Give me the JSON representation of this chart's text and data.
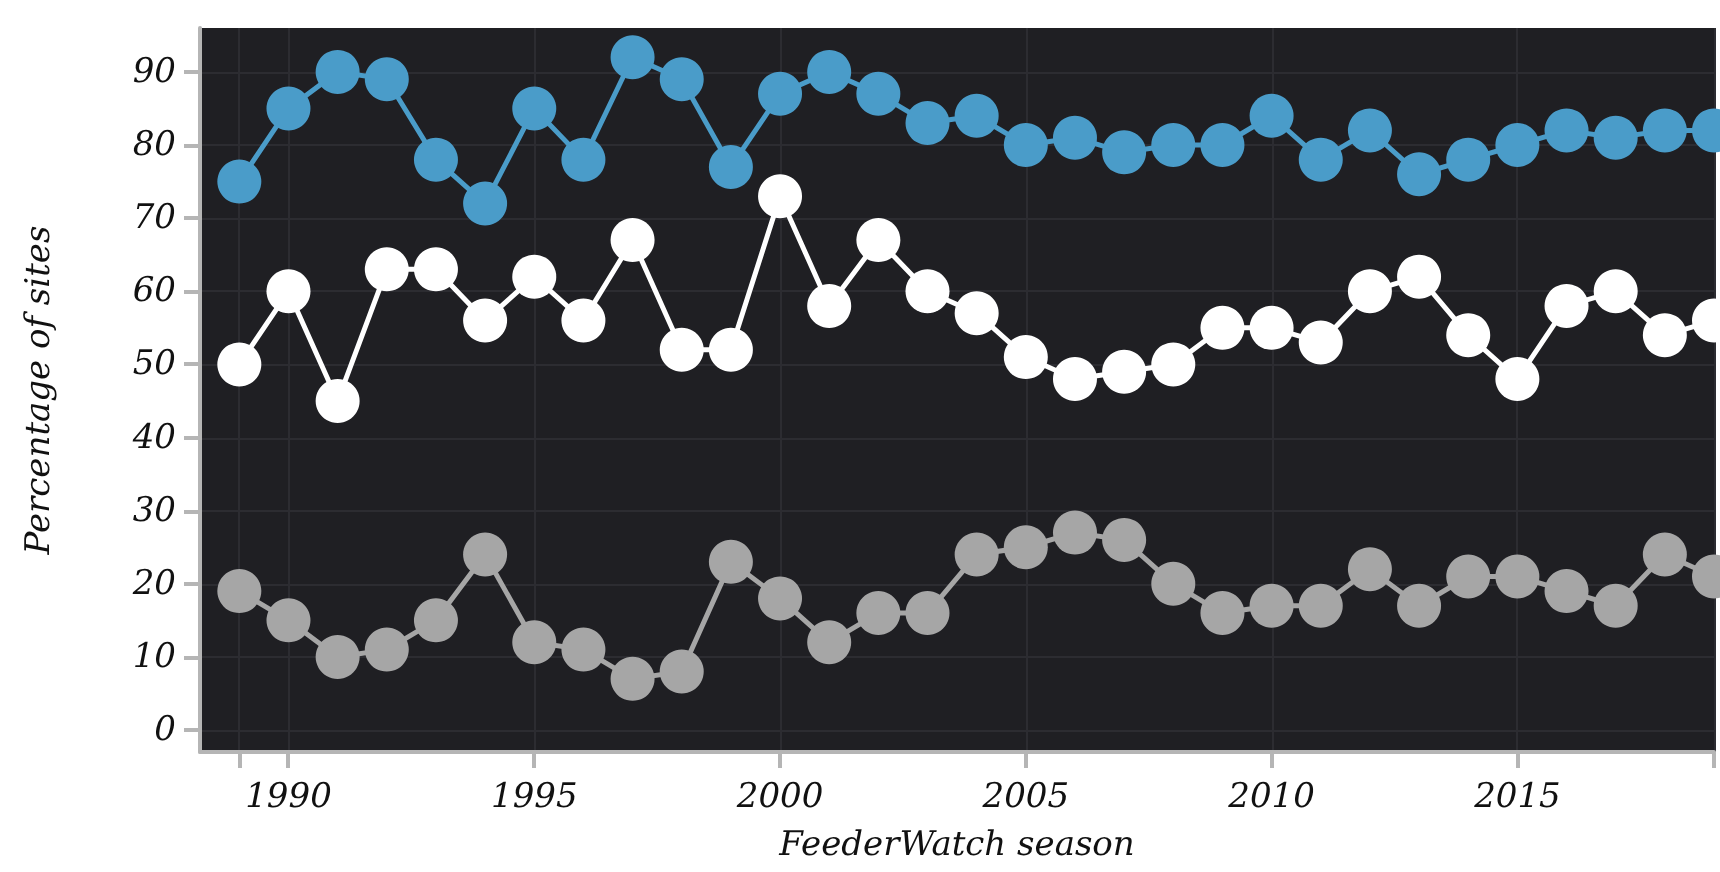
{
  "chart_data": {
    "type": "line",
    "xlabel": "FeederWatch season",
    "ylabel": "Percentage of sites",
    "x": [
      1989,
      1990,
      1991,
      1992,
      1993,
      1994,
      1995,
      1996,
      1997,
      1998,
      1999,
      2000,
      2001,
      2002,
      2003,
      2004,
      2005,
      2006,
      2007,
      2008,
      2009,
      2010,
      2011,
      2012,
      2013,
      2014,
      2015,
      2016,
      2017,
      2018,
      2019
    ],
    "series": [
      {
        "color": "#4a9cc9",
        "values": [
          75,
          85,
          90,
          89,
          78,
          72,
          85,
          78,
          92,
          89,
          77,
          87,
          90,
          87,
          83,
          84,
          80,
          81,
          79,
          80,
          80,
          84,
          78,
          82,
          76,
          78,
          80,
          82,
          81,
          82,
          82
        ]
      },
      {
        "color": "#ffffff",
        "values": [
          50,
          60,
          45,
          63,
          63,
          56,
          62,
          56,
          67,
          52,
          52,
          73,
          58,
          67,
          60,
          57,
          51,
          48,
          49,
          50,
          55,
          55,
          53,
          60,
          62,
          54,
          48,
          58,
          60,
          54,
          56
        ]
      },
      {
        "color": "#a6a6a6",
        "values": [
          19,
          15,
          10,
          11,
          15,
          24,
          12,
          11,
          7,
          8,
          23,
          18,
          12,
          16,
          16,
          24,
          25,
          27,
          26,
          20,
          16,
          17,
          17,
          22,
          17,
          21,
          21,
          19,
          17,
          24,
          21
        ]
      }
    ],
    "xlim": [
      1988.2,
      2019
    ],
    "xticks": [
      {
        "value": 1989,
        "label": null
      },
      1990,
      1995,
      2000,
      2005,
      2010,
      2015,
      {
        "value": 2019,
        "label": null
      }
    ],
    "ylim": [
      -3,
      96
    ],
    "yticks": [
      0,
      10,
      20,
      30,
      40,
      50,
      60,
      70,
      80,
      90
    ],
    "grid": true,
    "marker": "circle",
    "line_style": "solid"
  }
}
